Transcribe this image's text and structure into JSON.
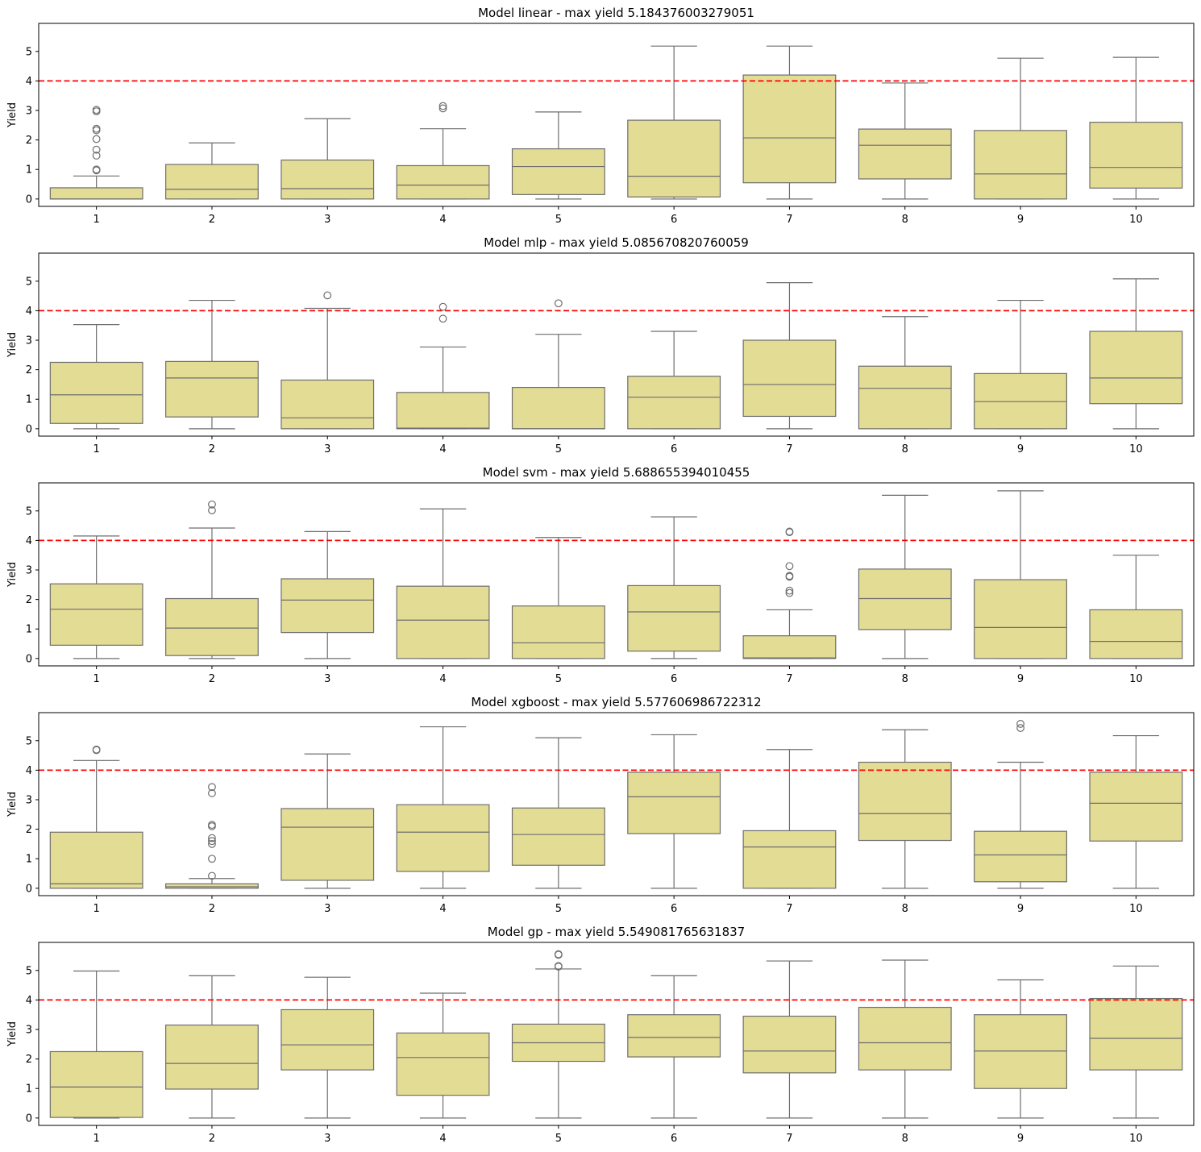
{
  "figure": {
    "ylabel": "Yield",
    "threshold": 4,
    "ylim": [
      -0.25,
      5.95
    ],
    "yticks": [
      0,
      1,
      2,
      3,
      4,
      5
    ],
    "colors": {
      "box_fill": "#e3dc95",
      "box_edge": "#6e6e6e",
      "threshold_line": "#ff0000",
      "axes": "#000000"
    }
  },
  "chart_data": [
    {
      "type": "box",
      "title": "Model linear - max yield 5.184376003279051",
      "categories": [
        "1",
        "2",
        "3",
        "4",
        "5",
        "6",
        "7",
        "8",
        "9",
        "10"
      ],
      "boxes": [
        {
          "whisker_low": 0,
          "q1": 0,
          "median": 0,
          "q3": 0.38,
          "whisker_high": 0.78,
          "outliers": [
            0.97,
            1.0,
            1.47,
            1.67,
            2.03,
            2.33,
            2.38,
            2.97,
            3.02
          ]
        },
        {
          "whisker_low": 0,
          "q1": 0,
          "median": 0.33,
          "q3": 1.17,
          "whisker_high": 1.9,
          "outliers": []
        },
        {
          "whisker_low": 0,
          "q1": 0,
          "median": 0.35,
          "q3": 1.32,
          "whisker_high": 2.72,
          "outliers": []
        },
        {
          "whisker_low": 0,
          "q1": 0,
          "median": 0.47,
          "q3": 1.13,
          "whisker_high": 2.38,
          "outliers": [
            3.07,
            3.15
          ]
        },
        {
          "whisker_low": 0,
          "q1": 0.15,
          "median": 1.1,
          "q3": 1.7,
          "whisker_high": 2.95,
          "outliers": []
        },
        {
          "whisker_low": 0,
          "q1": 0.07,
          "median": 0.77,
          "q3": 2.67,
          "whisker_high": 5.18,
          "outliers": []
        },
        {
          "whisker_low": 0,
          "q1": 0.55,
          "median": 2.07,
          "q3": 4.2,
          "whisker_high": 5.18,
          "outliers": []
        },
        {
          "whisker_low": 0,
          "q1": 0.68,
          "median": 1.82,
          "q3": 2.37,
          "whisker_high": 3.93,
          "outliers": []
        },
        {
          "whisker_low": 0,
          "q1": 0,
          "median": 0.85,
          "q3": 2.32,
          "whisker_high": 4.77,
          "outliers": []
        },
        {
          "whisker_low": 0,
          "q1": 0.37,
          "median": 1.07,
          "q3": 2.6,
          "whisker_high": 4.8,
          "outliers": []
        }
      ]
    },
    {
      "type": "box",
      "title": "Model mlp - max yield 5.085670820760059",
      "categories": [
        "1",
        "2",
        "3",
        "4",
        "5",
        "6",
        "7",
        "8",
        "9",
        "10"
      ],
      "boxes": [
        {
          "whisker_low": 0,
          "q1": 0.18,
          "median": 1.15,
          "q3": 2.25,
          "whisker_high": 3.53,
          "outliers": []
        },
        {
          "whisker_low": 0,
          "q1": 0.4,
          "median": 1.72,
          "q3": 2.28,
          "whisker_high": 4.35,
          "outliers": []
        },
        {
          "whisker_low": 0,
          "q1": 0,
          "median": 0.37,
          "q3": 1.65,
          "whisker_high": 4.08,
          "outliers": [
            4.52
          ]
        },
        {
          "whisker_low": 0,
          "q1": 0,
          "median": 0.02,
          "q3": 1.23,
          "whisker_high": 2.77,
          "outliers": [
            3.73,
            4.13
          ]
        },
        {
          "whisker_low": 0,
          "q1": 0,
          "median": 0,
          "q3": 1.4,
          "whisker_high": 3.2,
          "outliers": [
            4.25
          ]
        },
        {
          "whisker_low": 0,
          "q1": 0,
          "median": 1.07,
          "q3": 1.78,
          "whisker_high": 3.3,
          "outliers": []
        },
        {
          "whisker_low": 0,
          "q1": 0.42,
          "median": 1.5,
          "q3": 3.0,
          "whisker_high": 4.95,
          "outliers": []
        },
        {
          "whisker_low": 0,
          "q1": 0,
          "median": 1.37,
          "q3": 2.12,
          "whisker_high": 3.8,
          "outliers": []
        },
        {
          "whisker_low": 0,
          "q1": 0,
          "median": 0.92,
          "q3": 1.87,
          "whisker_high": 4.35,
          "outliers": []
        },
        {
          "whisker_low": 0,
          "q1": 0.85,
          "median": 1.72,
          "q3": 3.3,
          "whisker_high": 5.08,
          "outliers": []
        }
      ]
    },
    {
      "type": "box",
      "title": "Model svm - max yield 5.688655394010455",
      "categories": [
        "1",
        "2",
        "3",
        "4",
        "5",
        "6",
        "7",
        "8",
        "9",
        "10"
      ],
      "boxes": [
        {
          "whisker_low": 0,
          "q1": 0.45,
          "median": 1.67,
          "q3": 2.53,
          "whisker_high": 4.15,
          "outliers": []
        },
        {
          "whisker_low": 0,
          "q1": 0.1,
          "median": 1.03,
          "q3": 2.03,
          "whisker_high": 4.42,
          "outliers": [
            5.02,
            5.22
          ]
        },
        {
          "whisker_low": 0,
          "q1": 0.88,
          "median": 1.98,
          "q3": 2.7,
          "whisker_high": 4.3,
          "outliers": []
        },
        {
          "whisker_low": 0,
          "q1": 0,
          "median": 1.3,
          "q3": 2.45,
          "whisker_high": 5.07,
          "outliers": []
        },
        {
          "whisker_low": 0,
          "q1": 0,
          "median": 0.53,
          "q3": 1.78,
          "whisker_high": 4.1,
          "outliers": []
        },
        {
          "whisker_low": 0,
          "q1": 0.25,
          "median": 1.58,
          "q3": 2.47,
          "whisker_high": 4.8,
          "outliers": []
        },
        {
          "whisker_low": 0,
          "q1": 0,
          "median": 0.02,
          "q3": 0.77,
          "whisker_high": 1.65,
          "outliers": [
            2.22,
            2.3,
            2.77,
            2.8,
            3.13,
            4.28,
            4.3
          ]
        },
        {
          "whisker_low": 0,
          "q1": 0.98,
          "median": 2.03,
          "q3": 3.03,
          "whisker_high": 5.53,
          "outliers": []
        },
        {
          "whisker_low": 0,
          "q1": 0,
          "median": 1.05,
          "q3": 2.67,
          "whisker_high": 5.68,
          "outliers": []
        },
        {
          "whisker_low": 0,
          "q1": 0,
          "median": 0.58,
          "q3": 1.65,
          "whisker_high": 3.5,
          "outliers": []
        }
      ]
    },
    {
      "type": "box",
      "title": "Model xgboost - max yield 5.577606986722312",
      "categories": [
        "1",
        "2",
        "3",
        "4",
        "5",
        "6",
        "7",
        "8",
        "9",
        "10"
      ],
      "boxes": [
        {
          "whisker_low": 0,
          "q1": 0,
          "median": 0.15,
          "q3": 1.9,
          "whisker_high": 4.33,
          "outliers": [
            4.68,
            4.7
          ]
        },
        {
          "whisker_low": 0,
          "q1": 0,
          "median": 0.05,
          "q3": 0.15,
          "whisker_high": 0.33,
          "outliers": [
            0.42,
            1.0,
            1.5,
            1.6,
            1.7,
            2.1,
            2.15,
            3.22,
            3.43
          ]
        },
        {
          "whisker_low": 0,
          "q1": 0.27,
          "median": 2.07,
          "q3": 2.7,
          "whisker_high": 4.55,
          "outliers": []
        },
        {
          "whisker_low": 0,
          "q1": 0.57,
          "median": 1.9,
          "q3": 2.83,
          "whisker_high": 5.47,
          "outliers": []
        },
        {
          "whisker_low": 0,
          "q1": 0.78,
          "median": 1.82,
          "q3": 2.72,
          "whisker_high": 5.1,
          "outliers": []
        },
        {
          "whisker_low": 0,
          "q1": 1.85,
          "median": 3.1,
          "q3": 3.93,
          "whisker_high": 5.2,
          "outliers": []
        },
        {
          "whisker_low": 0,
          "q1": 0,
          "median": 1.4,
          "q3": 1.95,
          "whisker_high": 4.7,
          "outliers": []
        },
        {
          "whisker_low": 0,
          "q1": 1.62,
          "median": 2.53,
          "q3": 4.27,
          "whisker_high": 5.37,
          "outliers": []
        },
        {
          "whisker_low": 0,
          "q1": 0.22,
          "median": 1.13,
          "q3": 1.93,
          "whisker_high": 4.27,
          "outliers": [
            5.43,
            5.57
          ]
        },
        {
          "whisker_low": 0,
          "q1": 1.6,
          "median": 2.88,
          "q3": 3.93,
          "whisker_high": 5.17,
          "outliers": []
        }
      ]
    },
    {
      "type": "box",
      "title": "Model gp - max yield 5.549081765631837",
      "categories": [
        "1",
        "2",
        "3",
        "4",
        "5",
        "6",
        "7",
        "8",
        "9",
        "10"
      ],
      "boxes": [
        {
          "whisker_low": 0,
          "q1": 0.02,
          "median": 1.05,
          "q3": 2.25,
          "whisker_high": 4.98,
          "outliers": []
        },
        {
          "whisker_low": 0,
          "q1": 0.98,
          "median": 1.85,
          "q3": 3.15,
          "whisker_high": 4.82,
          "outliers": []
        },
        {
          "whisker_low": 0,
          "q1": 1.63,
          "median": 2.48,
          "q3": 3.67,
          "whisker_high": 4.77,
          "outliers": []
        },
        {
          "whisker_low": 0,
          "q1": 0.77,
          "median": 2.05,
          "q3": 2.88,
          "whisker_high": 4.23,
          "outliers": []
        },
        {
          "whisker_low": 0,
          "q1": 1.92,
          "median": 2.55,
          "q3": 3.18,
          "whisker_high": 5.05,
          "outliers": [
            5.13,
            5.15,
            5.53,
            5.55
          ]
        },
        {
          "whisker_low": 0,
          "q1": 2.07,
          "median": 2.73,
          "q3": 3.5,
          "whisker_high": 4.82,
          "outliers": []
        },
        {
          "whisker_low": 0,
          "q1": 1.53,
          "median": 2.27,
          "q3": 3.45,
          "whisker_high": 5.32,
          "outliers": []
        },
        {
          "whisker_low": 0,
          "q1": 1.63,
          "median": 2.55,
          "q3": 3.75,
          "whisker_high": 5.35,
          "outliers": []
        },
        {
          "whisker_low": 0,
          "q1": 1.0,
          "median": 2.27,
          "q3": 3.5,
          "whisker_high": 4.68,
          "outliers": []
        },
        {
          "whisker_low": 0,
          "q1": 1.63,
          "median": 2.7,
          "q3": 4.05,
          "whisker_high": 5.15,
          "outliers": []
        }
      ]
    }
  ]
}
